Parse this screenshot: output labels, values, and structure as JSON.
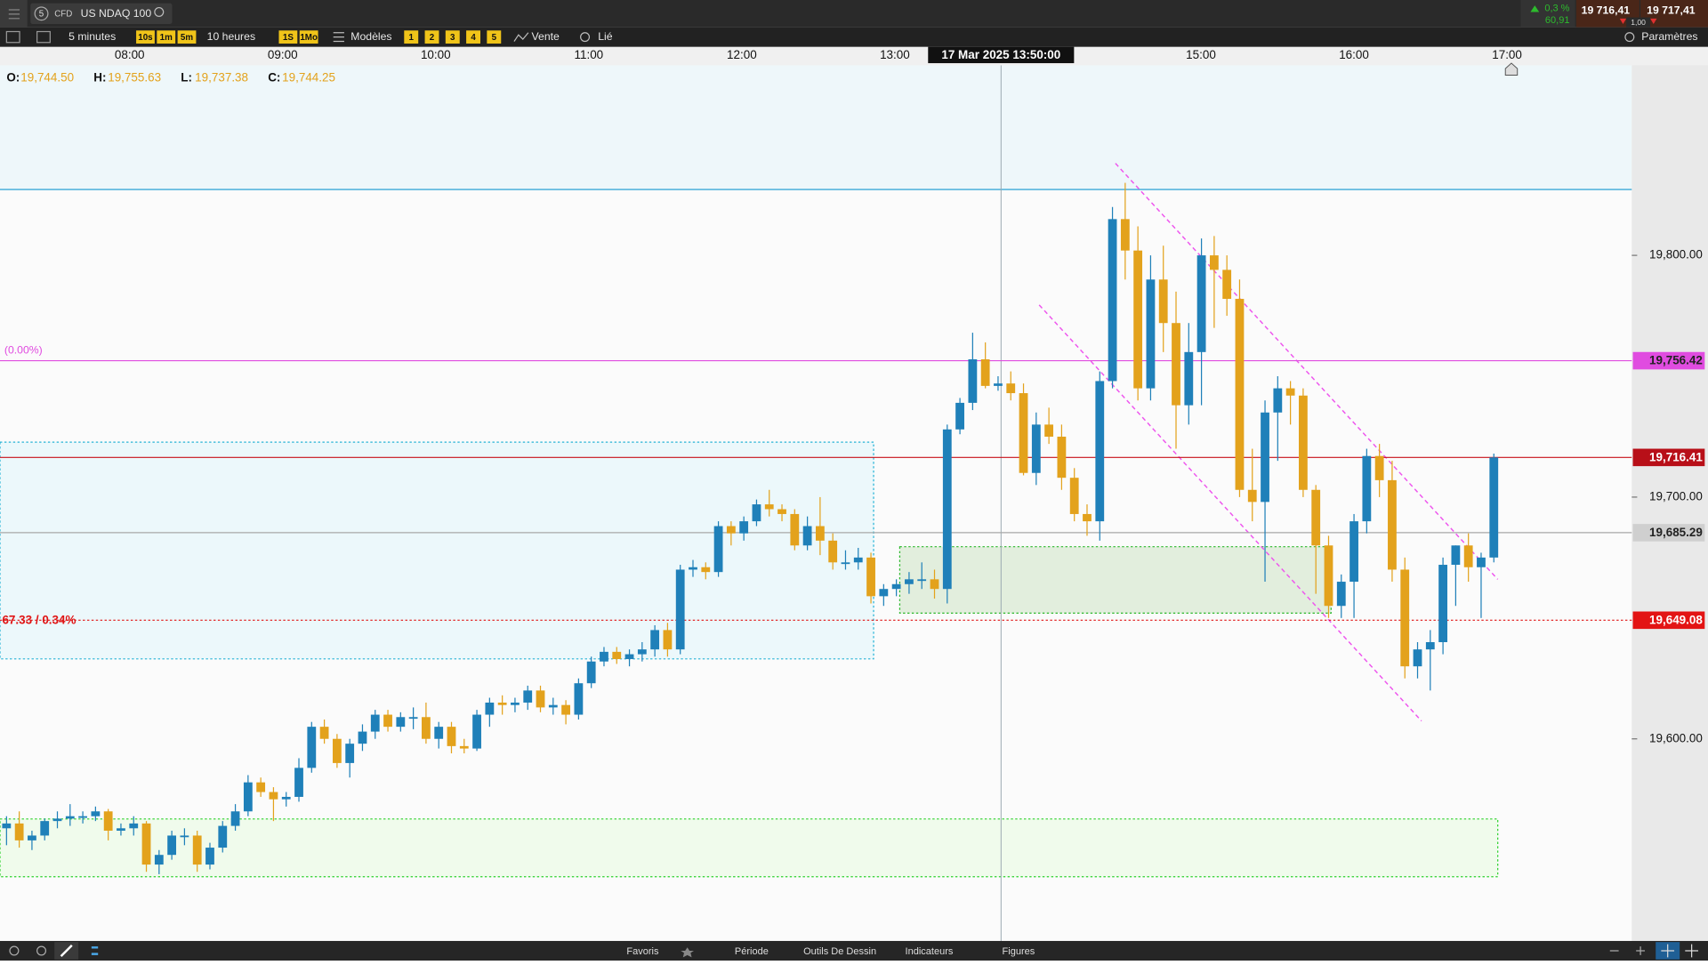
{
  "toolbar": {
    "instrument_number": "5",
    "instrument_type": "CFD",
    "instrument": "US NDAQ 100",
    "change_pct": "0,3 %",
    "change": "60,91",
    "sell": "19 716,41",
    "spread": "1,00",
    "buy": "19 717,41",
    "interval": "5 minutes",
    "quick_intervals": [
      "10s",
      "1m",
      "5m"
    ],
    "range": "10 heures",
    "quick_ranges": [
      "1S",
      "1Mo"
    ],
    "templates": "Modèles",
    "slots": [
      "1",
      "2",
      "3",
      "4",
      "5"
    ],
    "side": "Vente",
    "link": "Lié",
    "settings": "Paramètres"
  },
  "footer": {
    "tabs": [
      "Favoris",
      "Période",
      "Outils De Dessin",
      "Indicateurs",
      "Figures"
    ]
  },
  "chart_data": {
    "type": "candlestick",
    "crosshair_label": "17 Mar 2025 13:50:00",
    "ohlc_legend": [
      {
        "key": "O:",
        "value": "19,744.50"
      },
      {
        "key": "H:",
        "value": "19,755.63"
      },
      {
        "key": "L:",
        "value": "19,737.38"
      },
      {
        "key": "C:",
        "value": "19,744.25"
      }
    ],
    "x_labels": [
      "08:00",
      "09:00",
      "10:00",
      "11:00",
      "12:00",
      "13:00",
      null,
      "15:00",
      "16:00",
      "17:00"
    ],
    "ylim": [
      19516.4,
      19878.6
    ],
    "yticks": [
      {
        "value": 19600,
        "label": "19,600.00"
      },
      {
        "value": 19700,
        "label": "19,700.00"
      },
      {
        "value": 19800,
        "label": "19,800.00"
      }
    ],
    "up_color": "#1f80b9",
    "down_color": "#e3a21c",
    "candles": {
      "open": [
        19563,
        19565,
        19558,
        19560,
        19566,
        19567,
        19568,
        19568,
        19570,
        19562,
        19563,
        19565,
        19548,
        19552,
        19560,
        19560,
        19548,
        19555,
        19564,
        19570,
        19582,
        19578,
        19575,
        19576,
        19588,
        19605,
        19600,
        19590,
        19598,
        19603,
        19610,
        19605,
        19609,
        19609,
        19600,
        19605,
        19597,
        19596,
        19610,
        19615,
        19614,
        19615,
        19620,
        19613,
        19614,
        19610,
        19623,
        19632,
        19636,
        19633,
        19635,
        19637,
        19645,
        19637,
        19670,
        19671,
        19669,
        19688,
        19685,
        19690,
        19697,
        19695,
        19693,
        19680,
        19688,
        19682,
        19673,
        19673,
        19675,
        19659,
        19662,
        19664,
        19666,
        19666,
        19662,
        19728,
        19739,
        19757,
        19746,
        19747,
        19743,
        19710,
        19730,
        19725,
        19708,
        19693,
        19690,
        19748,
        19815,
        19802,
        19745,
        19790,
        19772,
        19738,
        19760,
        19800,
        19794,
        19782,
        19703,
        19698,
        19735,
        19745,
        19742,
        19703,
        19680,
        19655,
        19665,
        19690,
        19717,
        19707,
        19670,
        19630,
        19637,
        19640,
        19672,
        19680,
        19671,
        19675
      ],
      "high": [
        19568,
        19570,
        19562,
        19567,
        19570,
        19573,
        19570,
        19572,
        19571,
        19565,
        19568,
        19566,
        19554,
        19562,
        19563,
        19562,
        19557,
        19566,
        19573,
        19585,
        19584,
        19580,
        19578,
        19592,
        19607,
        19608,
        19602,
        19600,
        19606,
        19612,
        19612,
        19611,
        19613,
        19615,
        19607,
        19607,
        19600,
        19612,
        19617,
        19618,
        19617,
        19622,
        19622,
        19617,
        19616,
        19625,
        19634,
        19638,
        19638,
        19637,
        19640,
        19647,
        19648,
        19672,
        19674,
        19673,
        19690,
        19690,
        19692,
        19699,
        19703,
        19697,
        19695,
        19692,
        19700,
        19685,
        19678,
        19679,
        19677,
        19664,
        19666,
        19669,
        19673,
        19670,
        19730,
        19741,
        19768,
        19764,
        19750,
        19752,
        19747,
        19735,
        19737,
        19730,
        19712,
        19697,
        19752,
        19820,
        19830,
        19812,
        19800,
        19804,
        19785,
        19772,
        19807,
        19808,
        19800,
        19790,
        19720,
        19740,
        19750,
        19748,
        19745,
        19705,
        19684,
        19668,
        19693,
        19720,
        19722,
        19715,
        19675,
        19640,
        19645,
        19675,
        19680,
        19685,
        19677,
        19718
      ],
      "low": [
        19556,
        19555,
        19554,
        19558,
        19563,
        19564,
        19565,
        19566,
        19558,
        19560,
        19560,
        19545,
        19544,
        19550,
        19556,
        19545,
        19546,
        19553,
        19562,
        19568,
        19576,
        19566,
        19572,
        19574,
        19586,
        19598,
        19588,
        19584,
        19595,
        19600,
        19603,
        19603,
        19604,
        19598,
        19596,
        19594,
        19594,
        19595,
        19605,
        19610,
        19611,
        19612,
        19611,
        19610,
        19606,
        19608,
        19621,
        19630,
        19631,
        19630,
        19632,
        19634,
        19634,
        19635,
        19667,
        19666,
        19667,
        19680,
        19682,
        19688,
        19692,
        19690,
        19678,
        19678,
        19676,
        19670,
        19670,
        19670,
        19656,
        19655,
        19659,
        19660,
        19662,
        19658,
        19656,
        19726,
        19736,
        19745,
        19744,
        19740,
        19709,
        19705,
        19722,
        19703,
        19690,
        19684,
        19682,
        19745,
        19790,
        19740,
        19740,
        19760,
        19720,
        19730,
        19738,
        19770,
        19775,
        19700,
        19690,
        19665,
        19715,
        19730,
        19700,
        19660,
        19650,
        19650,
        19650,
        19685,
        19700,
        19665,
        19625,
        19625,
        19620,
        19635,
        19655,
        19665,
        19650,
        19673
      ],
      "close": [
        19565,
        19558,
        19560,
        19566,
        19567,
        19568,
        19568,
        19570,
        19562,
        19563,
        19565,
        19548,
        19552,
        19560,
        19560,
        19548,
        19555,
        19564,
        19570,
        19582,
        19578,
        19575,
        19576,
        19588,
        19605,
        19600,
        19590,
        19598,
        19603,
        19610,
        19605,
        19609,
        19609,
        19600,
        19605,
        19597,
        19596,
        19610,
        19615,
        19614,
        19615,
        19620,
        19613,
        19614,
        19610,
        19623,
        19632,
        19636,
        19633,
        19635,
        19637,
        19645,
        19637,
        19670,
        19671,
        19669,
        19688,
        19685,
        19690,
        19697,
        19695,
        19693,
        19680,
        19688,
        19682,
        19673,
        19673,
        19675,
        19659,
        19662,
        19664,
        19666,
        19666,
        19662,
        19728,
        19739,
        19757,
        19746,
        19747,
        19743,
        19710,
        19730,
        19725,
        19708,
        19693,
        19690,
        19748,
        19815,
        19802,
        19745,
        19790,
        19772,
        19738,
        19760,
        19800,
        19794,
        19782,
        19703,
        19698,
        19735,
        19745,
        19742,
        19703,
        19680,
        19655,
        19665,
        19690,
        19717,
        19707,
        19670,
        19630,
        19637,
        19640,
        19672,
        19680,
        19671,
        19675,
        19716.41
      ]
    },
    "price_lines": [
      {
        "value": 19756.42,
        "label": "19,756.42",
        "color": "#e04ce0",
        "label_color": "#e04ce0",
        "text_color": "#222222",
        "style": "solid"
      },
      {
        "value": 19716.41,
        "label": "19,716.41",
        "color": "#c8101a",
        "label_color": "#b80f18",
        "text_color": "#ffffff",
        "style": "solid"
      },
      {
        "value": 19685.29,
        "label": "19,685.29",
        "color": "#a8a8a8",
        "label_color": "#cfcfcf",
        "text_color": "#222222",
        "style": "solid"
      },
      {
        "value": 19649.08,
        "label": "19,649.08",
        "color": "#e01414",
        "label_color": "#e31414",
        "text_color": "#ffffff",
        "style": "dotted"
      }
    ],
    "annotations": [
      {
        "text": "(0.00%)",
        "color": "#e04ce0"
      },
      {
        "text": "67.33 / 0.34%",
        "color": "#e01414"
      }
    ]
  }
}
